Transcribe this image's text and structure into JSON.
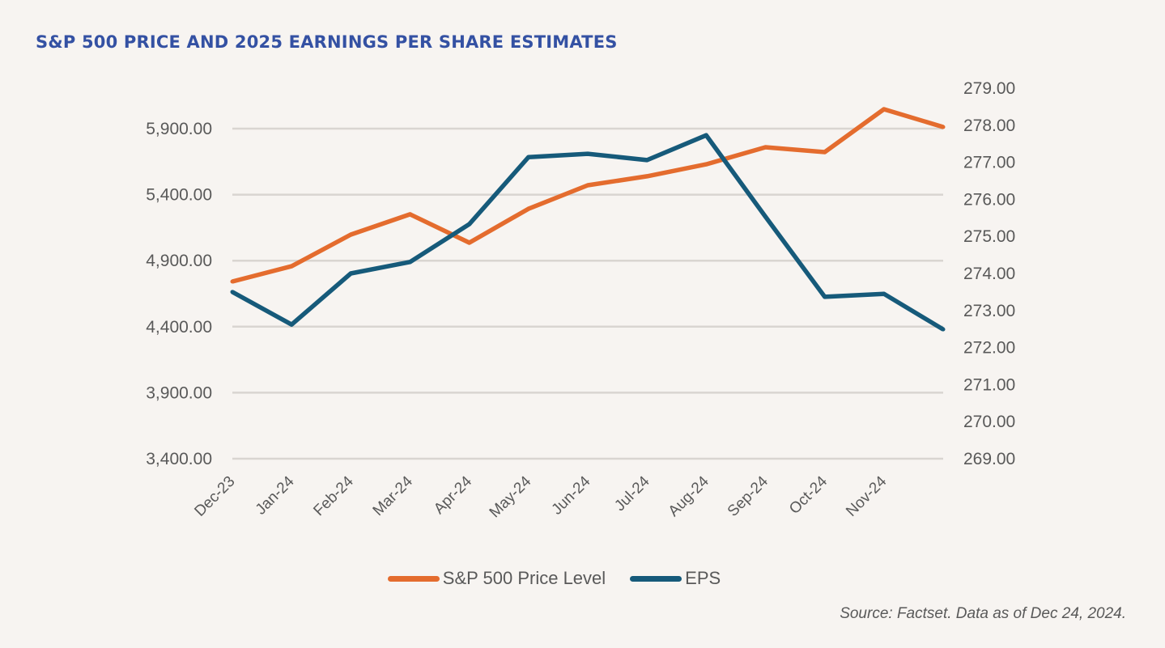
{
  "colors": {
    "background": "#F7F4F1",
    "title": "#3451A3",
    "price_series": "#E46C2E",
    "eps_series": "#165A7A",
    "grid": "#D9D5D1",
    "text": "#595959"
  },
  "source_note": "Source: Factset. Data as of Dec 24, 2024.",
  "chart_data": {
    "type": "line",
    "title": "S&P 500 PRICE AND 2025 EARNINGS PER SHARE ESTIMATES",
    "xlabel": "",
    "ylabel": "",
    "y2label": "",
    "categories": [
      "Dec-23",
      "Jan-24",
      "Feb-24",
      "Mar-24",
      "Apr-24",
      "May-24",
      "Jun-24",
      "Jul-24",
      "Aug-24",
      "Sep-24",
      "Oct-24",
      "Nov-24",
      ""
    ],
    "series": [
      {
        "name": "S&P 500 Price Level",
        "axis": "left",
        "color": "#E46C2E",
        "values": [
          4742,
          4858,
          5097,
          5251,
          5036,
          5293,
          5471,
          5539,
          5630,
          5759,
          5722,
          6047,
          5912
        ]
      },
      {
        "name": "EPS",
        "axis": "right",
        "color": "#165A7A",
        "values": [
          273.5,
          272.62,
          274.0,
          274.31,
          275.33,
          277.14,
          277.23,
          277.06,
          277.73,
          275.53,
          273.37,
          273.45,
          272.49
        ]
      }
    ],
    "y_left": {
      "range": [
        3400,
        6150
      ],
      "ticks": [
        3400,
        3900,
        4400,
        4900,
        5400,
        5900
      ],
      "tick_labels": [
        "3,400.00",
        "3,900.00",
        "4,400.00",
        "4,900.00",
        "5,400.00",
        "5,900.00"
      ]
    },
    "y_right": {
      "range": [
        269,
        279
      ],
      "ticks": [
        269,
        270,
        271,
        272,
        273,
        274,
        275,
        276,
        277,
        278,
        279
      ],
      "tick_labels": [
        "269.00",
        "270.00",
        "271.00",
        "272.00",
        "273.00",
        "274.00",
        "275.00",
        "276.00",
        "277.00",
        "278.00",
        "279.00"
      ]
    },
    "grid": "horizontal",
    "gridlines_on": "left-axis ticks",
    "legend": {
      "position": "bottom",
      "entries": [
        "S&P 500 Price Level",
        "EPS"
      ]
    }
  }
}
